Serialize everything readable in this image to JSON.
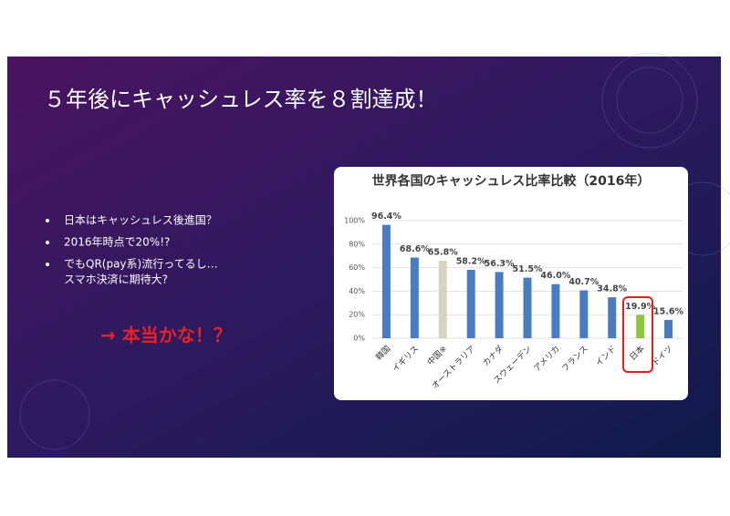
{
  "slide": {
    "title": "５年後にキャッシュレス率を８割達成！",
    "bullets": [
      [
        "日本はキャッシュレス後進国？"
      ],
      [
        "2016年時点で20%!?"
      ],
      [
        "でもQR(pay系)流行ってるし…",
        "スマホ決済に期待大?"
      ]
    ],
    "callout": "→ 本当かな！？"
  },
  "chart_data": {
    "type": "bar",
    "title": "世界各国のキャッシュレス比率比較（2016年）",
    "categories": [
      "韓国",
      "イギリス",
      "中国※",
      "オーストラリア",
      "カナダ",
      "スウェーデン",
      "アメリカ",
      "フランス",
      "インド",
      "日本",
      "ドイツ"
    ],
    "values": [
      96.4,
      68.6,
      65.8,
      58.2,
      56.3,
      51.5,
      46.0,
      40.7,
      34.8,
      19.9,
      15.6
    ],
    "value_labels": [
      "96.4%",
      "68.6%",
      "65.8%",
      "58.2%",
      "56.3%",
      "51.5%",
      "46.0%",
      "40.7%",
      "34.8%",
      "19.9%",
      "15.6%"
    ],
    "colors": [
      "#4a7cc4",
      "#4a7cc4",
      "#d8d2c0",
      "#4a7cc4",
      "#4a7cc4",
      "#4a7cc4",
      "#4a7cc4",
      "#4a7cc4",
      "#4a7cc4",
      "#8cc63e",
      "#4a7cc4"
    ],
    "ylim": [
      0,
      100
    ],
    "yticks": [
      {
        "value": 0,
        "label": "0%"
      },
      {
        "value": 20,
        "label": "20%"
      },
      {
        "value": 40,
        "label": "40%"
      },
      {
        "value": 60,
        "label": "60%"
      },
      {
        "value": 80,
        "label": "80%"
      },
      {
        "value": 100,
        "label": "100%"
      }
    ],
    "grid": true
  }
}
